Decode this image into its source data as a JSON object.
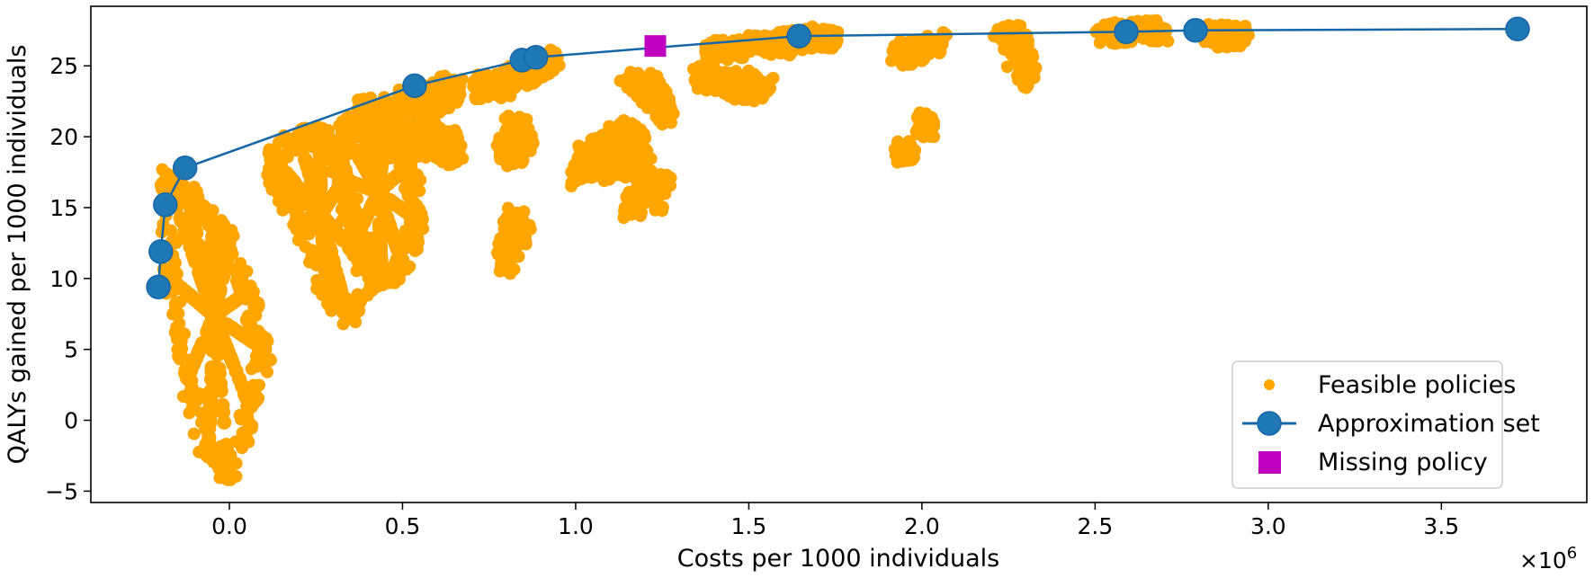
{
  "chart_data": {
    "type": "scatter",
    "title": "",
    "xlabel": "Costs per 1000 individuals",
    "ylabel": "QALYs gained per 1000 individuals",
    "x_offset_label": "×10",
    "x_offset_exponent": "6",
    "xlim": [
      -0.4,
      3.92
    ],
    "ylim": [
      -5.8,
      29.2
    ],
    "xticks": [
      0.0,
      0.5,
      1.0,
      1.5,
      2.0,
      2.5,
      3.0,
      3.5
    ],
    "xtick_labels": [
      "0.0",
      "0.5",
      "1.0",
      "1.5",
      "2.0",
      "2.5",
      "3.0",
      "3.5"
    ],
    "yticks": [
      -5,
      0,
      5,
      10,
      15,
      20,
      25
    ],
    "ytick_labels": [
      "−5",
      "0",
      "5",
      "10",
      "15",
      "20",
      "25"
    ],
    "legend_position": "lower-right",
    "colors": {
      "feasible": "#ffa500",
      "approximation": "#1f77b4",
      "approx_line": "#1667a8",
      "missing": "#c000c0"
    },
    "series": [
      {
        "name": "Feasible policies",
        "kind": "scatter-clusters",
        "clusters": [
          {
            "x": [
              -0.18,
              -0.12,
              -0.05,
              0.0,
              0.05,
              0.1,
              0.06,
              0.0,
              -0.06,
              -0.12,
              -0.17
            ],
            "y": [
              17,
              16,
              14,
              12,
              9,
              5,
              1,
              -4,
              -2,
              3,
              10
            ]
          },
          {
            "x": [
              0.13,
              0.2,
              0.26,
              0.33,
              0.36,
              0.42,
              0.34,
              0.28,
              0.2,
              0.13
            ],
            "y": [
              18.5,
              20,
              20,
              17,
              12,
              10,
              7.5,
              9,
              14,
              17
            ]
          },
          {
            "x": [
              0.33,
              0.38,
              0.45,
              0.52,
              0.55,
              0.5,
              0.44,
              0.37,
              0.33
            ],
            "y": [
              20.5,
              21.5,
              20,
              18,
              14,
              11,
              10,
              13,
              17
            ]
          },
          {
            "x": [
              0.38,
              0.43,
              0.47,
              0.5,
              0.48,
              0.42,
              0.38
            ],
            "y": [
              22,
              22,
              21.5,
              20,
              19,
              19.5,
              20.5
            ]
          },
          {
            "x": [
              0.54,
              0.6,
              0.66,
              0.63,
              0.56
            ],
            "y": [
              19.5,
              19,
              18.5,
              20,
              21
            ]
          },
          {
            "x": [
              0.5,
              0.56,
              0.62,
              0.66,
              0.62,
              0.55
            ],
            "y": [
              22.5,
              23,
              23.5,
              23.5,
              22.5,
              22.3
            ]
          },
          {
            "x": [
              0.72,
              0.78,
              0.84,
              0.9,
              0.94,
              0.88,
              0.8,
              0.74
            ],
            "y": [
              23.5,
              24,
              24.5,
              25,
              25.5,
              24.5,
              23.5,
              23.3
            ]
          },
          {
            "x": [
              0.8,
              0.84,
              0.86,
              0.83,
              0.79
            ],
            "y": [
              18.5,
              19,
              20,
              21,
              19.5
            ]
          },
          {
            "x": [
              0.79,
              0.82,
              0.85,
              0.83,
              0.8
            ],
            "y": [
              11,
              12,
              13,
              14.5,
              12.5
            ]
          },
          {
            "x": [
              1.0,
              1.05,
              1.1,
              1.14,
              1.18,
              1.2,
              1.15,
              1.08,
              1.02
            ],
            "y": [
              17,
              18,
              17.5,
              18.5,
              17,
              19,
              20.5,
              20,
              18.5
            ]
          },
          {
            "x": [
              1.16,
              1.18,
              1.2
            ],
            "y": [
              15,
              15.5,
              16
            ]
          },
          {
            "x": [
              1.2,
              1.23,
              1.26
            ],
            "y": [
              17,
              15.5,
              17
            ]
          },
          {
            "x": [
              1.15,
              1.19,
              1.23,
              1.27,
              1.25
            ],
            "y": [
              24,
              23.5,
              24,
              22,
              21.5
            ]
          },
          {
            "x": [
              1.35,
              1.4,
              1.45,
              1.5,
              1.55,
              1.48,
              1.42
            ],
            "y": [
              24,
              24.5,
              23.5,
              24,
              23.5,
              23.2,
              24
            ]
          },
          {
            "x": [
              1.38,
              1.45,
              1.52,
              1.58,
              1.64,
              1.7,
              1.75
            ],
            "y": [
              26,
              26.3,
              26.5,
              26.6,
              26.8,
              27,
              26.8
            ]
          },
          {
            "x": [
              1.93,
              1.98,
              2.02,
              2.05,
              1.95
            ],
            "y": [
              26,
              26.2,
              26.4,
              26.6,
              25.8
            ]
          },
          {
            "x": [
              1.94,
              1.96
            ],
            "y": [
              19,
              18.8
            ]
          },
          {
            "x": [
              2.0,
              2.02
            ],
            "y": [
              21,
              20.5
            ]
          },
          {
            "x": [
              2.23,
              2.28,
              2.31,
              2.3
            ],
            "y": [
              27,
              27.2,
              24.5,
              24.2
            ]
          },
          {
            "x": [
              2.52,
              2.58,
              2.64,
              2.7
            ],
            "y": [
              27.3,
              27.4,
              27.5,
              27.5
            ]
          },
          {
            "x": [
              2.83,
              2.88,
              2.93
            ],
            "y": [
              27.1,
              27.2,
              27.0
            ]
          }
        ]
      },
      {
        "name": "Approximation set",
        "kind": "line-markers",
        "x": [
          -0.205,
          -0.198,
          -0.185,
          -0.128,
          0.535,
          0.845,
          0.885,
          1.645,
          2.59,
          2.79,
          3.72
        ],
        "y": [
          9.4,
          11.9,
          15.2,
          17.8,
          23.6,
          25.4,
          25.6,
          27.1,
          27.4,
          27.5,
          27.6
        ]
      },
      {
        "name": "Missing policy",
        "kind": "marker-square",
        "x": [
          1.23
        ],
        "y": [
          26.4
        ]
      }
    ]
  }
}
